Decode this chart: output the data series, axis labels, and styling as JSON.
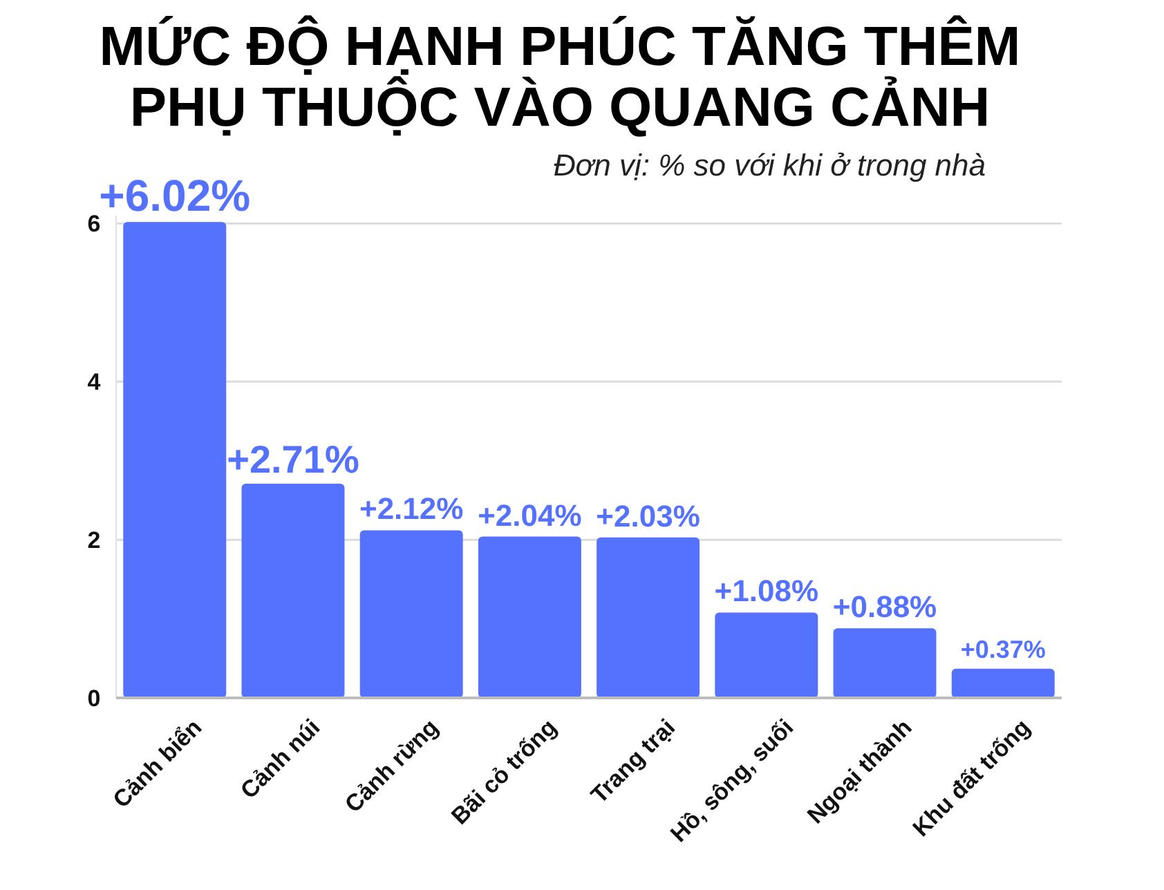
{
  "chart_data": {
    "type": "bar",
    "title": "MỨC ĐỘ HẠNH PHÚC TĂNG THÊM\nPHỤ THUỘC VÀO QUANG CẢNH",
    "subtitle": "Đơn vị: % so với khi ở trong nhà",
    "categories": [
      "Cảnh biển",
      "Cảnh núi",
      "Cảnh rừng",
      "Bãi cỏ trống",
      "Trang trại",
      "Hồ, sông, suối",
      "Ngoại thành",
      "Khu đất trống"
    ],
    "values": [
      6.02,
      2.71,
      2.12,
      2.04,
      2.03,
      1.08,
      0.88,
      0.37
    ],
    "value_labels": [
      "+6.02%",
      "+2.71%",
      "+2.12%",
      "+2.04%",
      "+2.03%",
      "+1.08%",
      "+0.88%",
      "+0.37%"
    ],
    "color": "#5472fd",
    "ylim": [
      0,
      6.1
    ],
    "yticks": [
      0,
      2,
      4,
      6
    ],
    "grid": "y"
  }
}
